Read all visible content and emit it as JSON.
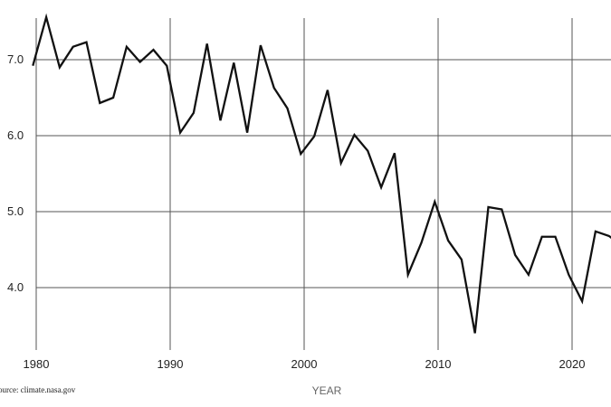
{
  "chart_data": {
    "type": "line",
    "title": "",
    "xlabel": "YEAR",
    "ylabel": "",
    "source": "ource: climate.nasa.gov",
    "x_ticks": [
      "1980",
      "1990",
      "2000",
      "2010",
      "2020"
    ],
    "y_ticks": [
      "4.0",
      "5.0",
      "6.0",
      "7.0"
    ],
    "xlim": [
      1978.3,
      2022.9
    ],
    "ylim": [
      3.2,
      7.8
    ],
    "grid": true,
    "line_color": "#111111",
    "grid_color": "#555555",
    "x": [
      1979,
      1980,
      1981,
      1982,
      1983,
      1984,
      1985,
      1986,
      1987,
      1988,
      1989,
      1990,
      1991,
      1992,
      1993,
      1994,
      1995,
      1996,
      1997,
      1998,
      1999,
      2000,
      2001,
      2002,
      2003,
      2004,
      2005,
      2006,
      2007,
      2008,
      2009,
      2010,
      2011,
      2012,
      2013,
      2014,
      2015,
      2016,
      2017,
      2018,
      2019,
      2020,
      2021,
      2022,
      2023
    ],
    "series": [
      {
        "values": [
          6.92,
          7.56,
          6.9,
          7.17,
          7.23,
          6.43,
          6.5,
          7.17,
          6.97,
          7.13,
          6.92,
          6.04,
          6.3,
          7.21,
          6.2,
          6.96,
          6.04,
          7.19,
          6.63,
          6.36,
          5.76,
          5.99,
          6.6,
          5.64,
          6.01,
          5.8,
          5.32,
          5.77,
          4.17,
          4.59,
          5.13,
          4.62,
          4.37,
          3.4,
          5.06,
          5.03,
          4.43,
          4.17,
          4.67,
          4.67,
          4.17,
          3.82,
          4.74,
          4.68,
          4.55
        ]
      }
    ]
  }
}
